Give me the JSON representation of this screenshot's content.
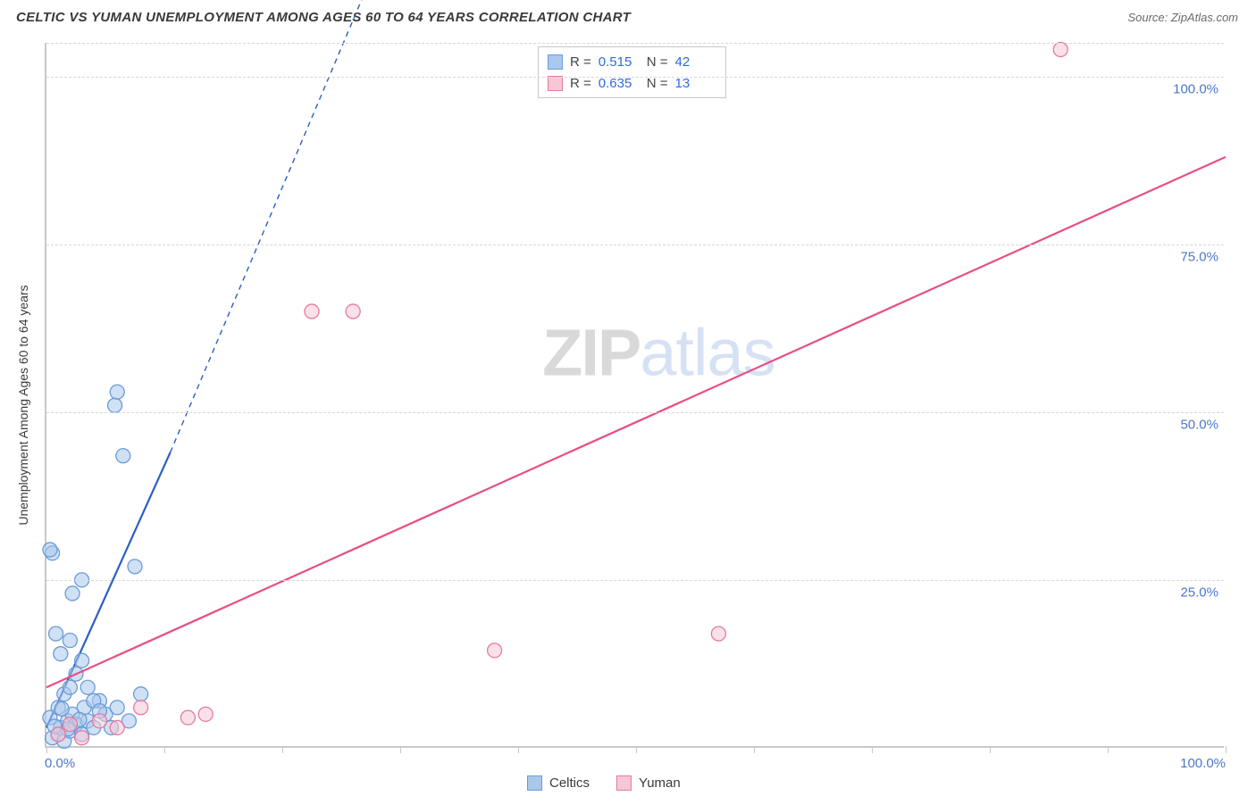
{
  "title": "CELTIC VS YUMAN UNEMPLOYMENT AMONG AGES 60 TO 64 YEARS CORRELATION CHART",
  "source": "Source: ZipAtlas.com",
  "ylabel": "Unemployment Among Ages 60 to 64 years",
  "chart": {
    "type": "scatter",
    "xlim": [
      0,
      100
    ],
    "ylim": [
      0,
      105
    ],
    "x_ticks": [
      0,
      10,
      20,
      30,
      40,
      50,
      60,
      70,
      80,
      90,
      100
    ],
    "x_tick_labels": {
      "0": "0.0%",
      "100": "100.0%"
    },
    "y_gridlines": [
      25,
      50,
      75,
      100,
      105
    ],
    "y_tick_labels": {
      "25": "25.0%",
      "50": "50.0%",
      "75": "75.0%",
      "100": "100.0%"
    },
    "background_color": "#ffffff",
    "grid_color": "#d8d8d8",
    "axis_color": "#c8c8c8",
    "tick_label_color": "#4a78c8",
    "series": [
      {
        "name": "Celtics",
        "color_fill": "#aac8ec",
        "color_stroke": "#6b9bd8",
        "marker_radius": 8,
        "fill_opacity": 0.55,
        "trend": {
          "x1": 0,
          "y1": 3,
          "x2": 10.5,
          "y2": 44,
          "dash_x2": 30,
          "dash_y2": 125,
          "color": "#2b5fc0",
          "width": 2.2
        },
        "points": [
          [
            0.5,
            1.5
          ],
          [
            1,
            2
          ],
          [
            1.2,
            3
          ],
          [
            1.5,
            1
          ],
          [
            1.8,
            4
          ],
          [
            2,
            2.5
          ],
          [
            2.2,
            5
          ],
          [
            2.5,
            3.5
          ],
          [
            0.3,
            4.5
          ],
          [
            3,
            2
          ],
          [
            3.2,
            6
          ],
          [
            3.5,
            4
          ],
          [
            1,
            6
          ],
          [
            4,
            3
          ],
          [
            4.5,
            7
          ],
          [
            1.5,
            8
          ],
          [
            5,
            5
          ],
          [
            2,
            9
          ],
          [
            5.5,
            3
          ],
          [
            2.5,
            11
          ],
          [
            6,
            6
          ],
          [
            3,
            13
          ],
          [
            7,
            4
          ],
          [
            1.2,
            14
          ],
          [
            4,
            7
          ],
          [
            2,
            16
          ],
          [
            0.8,
            17
          ],
          [
            3.5,
            9
          ],
          [
            2.2,
            23
          ],
          [
            8,
            8
          ],
          [
            3,
            25
          ],
          [
            7.5,
            27
          ],
          [
            0.5,
            29
          ],
          [
            0.3,
            29.5
          ],
          [
            6.5,
            43.5
          ],
          [
            5.8,
            51
          ],
          [
            6,
            53
          ],
          [
            4.5,
            5.5
          ],
          [
            1.8,
            2.8
          ],
          [
            2.8,
            4.2
          ],
          [
            0.7,
            3.2
          ],
          [
            1.3,
            5.8
          ]
        ]
      },
      {
        "name": "Yuman",
        "color_fill": "#f6c8d6",
        "color_stroke": "#e57aa0",
        "marker_radius": 8,
        "fill_opacity": 0.55,
        "trend": {
          "x1": 0,
          "y1": 9,
          "x2": 100,
          "y2": 88,
          "color": "#e84f82",
          "width": 2.2
        },
        "points": [
          [
            1,
            2
          ],
          [
            2,
            3.5
          ],
          [
            3,
            1.5
          ],
          [
            4.5,
            4
          ],
          [
            6,
            3
          ],
          [
            8,
            6
          ],
          [
            12,
            4.5
          ],
          [
            13.5,
            5
          ],
          [
            22.5,
            65
          ],
          [
            26,
            65
          ],
          [
            38,
            14.5
          ],
          [
            57,
            17
          ],
          [
            86,
            104
          ]
        ]
      }
    ]
  },
  "legend_top": [
    {
      "swatch_fill": "#aac8ec",
      "swatch_stroke": "#6b9bd8",
      "r_label": "R  =",
      "r_value": "0.515",
      "n_label": "N  =",
      "n_value": "42"
    },
    {
      "swatch_fill": "#f6c8d6",
      "swatch_stroke": "#e57aa0",
      "r_label": "R  =",
      "r_value": "0.635",
      "n_label": "N  =",
      "n_value": "13"
    }
  ],
  "legend_bottom": [
    {
      "swatch_fill": "#aac8ec",
      "swatch_stroke": "#6b9bd8",
      "label": "Celtics"
    },
    {
      "swatch_fill": "#f6c8d6",
      "swatch_stroke": "#e57aa0",
      "label": "Yuman"
    }
  ],
  "watermark": {
    "part1": "ZIP",
    "part2": "atlas"
  }
}
